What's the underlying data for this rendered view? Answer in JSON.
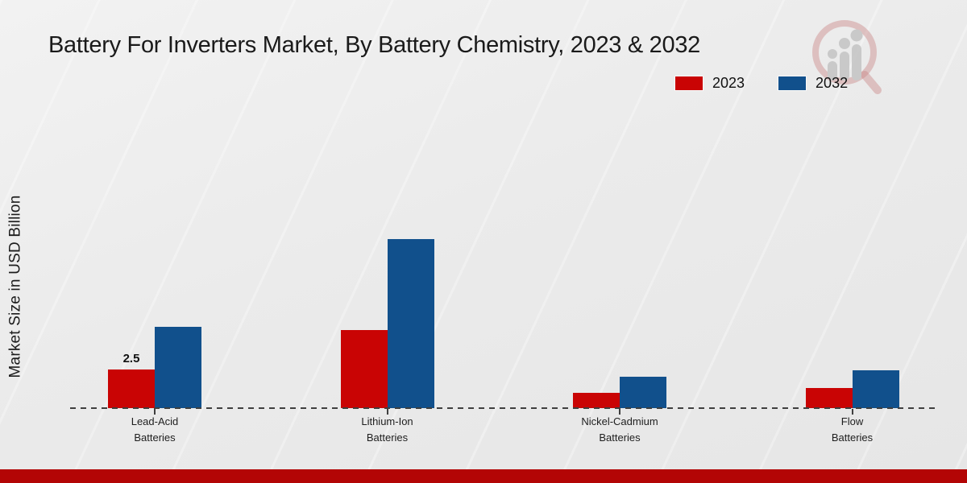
{
  "title": "Battery For Inverters Market, By Battery Chemistry, 2023 & 2032",
  "ylabel": "Market Size in USD Billion",
  "legend": {
    "position": "top-right",
    "items": [
      {
        "label": "2023",
        "color": "#c90404"
      },
      {
        "label": "2032",
        "color": "#11508c"
      }
    ]
  },
  "watermark_icon": "magnifier-bar-chart-logo-icon",
  "footer_bar_color": "#b30505",
  "chart_data": {
    "type": "bar",
    "title": "Battery For Inverters Market, By Battery Chemistry, 2023 & 2032",
    "xlabel": "",
    "ylabel": "Market Size in USD Billion",
    "ylim": [
      0,
      12
    ],
    "grid": false,
    "baseline_style": "dashed",
    "categories": [
      {
        "id": "lead-acid-batteries",
        "lines": [
          "Lead-Acid",
          "Batteries"
        ]
      },
      {
        "id": "lithium-ion-batteries",
        "lines": [
          "Lithium-Ion",
          "Batteries"
        ]
      },
      {
        "id": "nickel-cadmium-batteries",
        "lines": [
          "Nickel-Cadmium",
          "Batteries"
        ]
      },
      {
        "id": "flow-batteries",
        "lines": [
          "Flow",
          "Batteries"
        ]
      }
    ],
    "series": [
      {
        "name": "2023",
        "color": "#c90404",
        "values": [
          2.5,
          5.0,
          1.0,
          1.3
        ]
      },
      {
        "name": "2032",
        "color": "#11508c",
        "values": [
          5.2,
          10.8,
          2.0,
          2.4
        ]
      }
    ],
    "annotations": [
      {
        "category_index": 0,
        "series_index": 0,
        "text": "2.5"
      }
    ]
  }
}
